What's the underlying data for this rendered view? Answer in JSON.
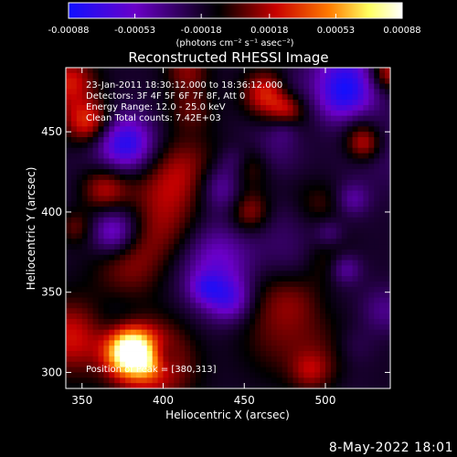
{
  "colorbar": {
    "ticks": [
      "-0.00088",
      "-0.00053",
      "-0.00018",
      "0.00018",
      "0.00053",
      "0.00088"
    ],
    "tick_values": [
      -0.00088,
      -0.00053,
      -0.00018,
      0.00018,
      0.00053,
      0.00088
    ],
    "range": [
      -0.00088,
      0.00088
    ],
    "units": "(photons cm⁻² s⁻¹ asec⁻²)",
    "colors": [
      "#1010ff",
      "#6a00c8",
      "#000000",
      "#c80000",
      "#ff7a00",
      "#ffff60",
      "#ffffff"
    ]
  },
  "chart_data": {
    "type": "heatmap",
    "title": "Reconstructed RHESSI Image",
    "xlabel": "Heliocentric X (arcsec)",
    "ylabel": "Heliocentric Y (arcsec)",
    "xlim": [
      340,
      540
    ],
    "ylim": [
      290,
      490
    ],
    "xticks": [
      350,
      400,
      450,
      500
    ],
    "yticks": [
      300,
      350,
      400,
      450
    ],
    "xtick_labels": [
      "350",
      "400",
      "450",
      "500"
    ],
    "ytick_labels": [
      "300",
      "350",
      "400",
      "450"
    ],
    "annotations": [
      "23-Jan-2011 18:30:12.000 to 18:36:12.000",
      "Detectors: 3F 4F 5F 6F 7F 8F, Att 0",
      "Energy Range: 12.0 - 25.0 keV",
      "Clean     Total counts: 7.42E+03"
    ],
    "peak_label": "Position of Peak = [380,313]",
    "peak": [
      380,
      313
    ],
    "grid": false
  },
  "timestamp": "8-May-2022 18:01"
}
